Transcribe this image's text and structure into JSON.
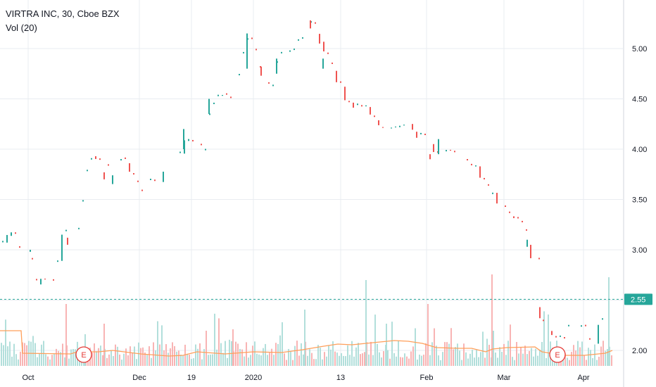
{
  "legend": {
    "title": "VIRTRA INC, 30, Cboe BZX",
    "vol_label": "Vol (20)"
  },
  "price_scale": {
    "last_price": "2.55"
  },
  "earnings_label": "E",
  "colors": {
    "up": "#26a69a",
    "down": "#ef5350",
    "vol_up": "#b2dfdb",
    "vol_down": "#f8b4b4",
    "ma": "#ff9f5a",
    "last": "#26a69a",
    "grid": "#e9ecf1"
  },
  "chart_data": {
    "type": "candlestick",
    "title": "VIRTRA INC, 30, Cboe BZX",
    "yaxis": {
      "ticks": [
        2.0,
        2.5,
        3.0,
        3.5,
        4.0,
        4.5,
        5.0
      ],
      "range": [
        1.9,
        5.45
      ]
    },
    "xaxis": {
      "ticks": [
        "Oct",
        "Dec",
        "19",
        "2020",
        "13",
        "Feb",
        "Mar",
        "Apr"
      ]
    },
    "last_price": 2.55,
    "earnings_markers": 2,
    "volume_indicator": "Vol (20)",
    "price_points": [
      [
        0,
        3.05
      ],
      [
        14,
        3.2
      ],
      [
        28,
        2.95
      ],
      [
        42,
        2.65
      ],
      [
        60,
        2.75
      ],
      [
        75,
        2.7
      ],
      [
        90,
        3.25
      ],
      [
        110,
        3.15
      ],
      [
        125,
        3.9
      ],
      [
        140,
        3.85
      ],
      [
        155,
        3.65
      ],
      [
        170,
        3.9
      ],
      [
        185,
        3.8
      ],
      [
        200,
        3.5
      ],
      [
        215,
        3.7
      ],
      [
        230,
        3.8
      ],
      [
        245,
        3.85
      ],
      [
        260,
        4.1
      ],
      [
        275,
        4.05
      ],
      [
        290,
        4.0
      ],
      [
        300,
        4.5
      ],
      [
        315,
        4.5
      ],
      [
        330,
        4.45
      ],
      [
        350,
        5.1
      ],
      [
        365,
        4.8
      ],
      [
        380,
        4.45
      ],
      [
        395,
        4.9
      ],
      [
        410,
        5.0
      ],
      [
        425,
        5.1
      ],
      [
        440,
        5.25
      ],
      [
        455,
        5.05
      ],
      [
        470,
        4.8
      ],
      [
        485,
        4.55
      ],
      [
        500,
        4.45
      ],
      [
        515,
        4.45
      ],
      [
        530,
        4.3
      ],
      [
        545,
        4.2
      ],
      [
        560,
        4.25
      ],
      [
        575,
        4.3
      ],
      [
        590,
        4.15
      ],
      [
        605,
        4.1
      ],
      [
        618,
        3.95
      ],
      [
        630,
        4.05
      ],
      [
        645,
        3.95
      ],
      [
        660,
        3.9
      ],
      [
        675,
        3.8
      ],
      [
        690,
        3.6
      ],
      [
        705,
        3.5
      ],
      [
        720,
        3.4
      ],
      [
        735,
        3.25
      ],
      [
        748,
        3.05
      ],
      [
        758,
        2.8
      ],
      [
        765,
        2.3
      ],
      [
        778,
        2.2
      ],
      [
        790,
        2.15
      ],
      [
        800,
        2.1
      ],
      [
        812,
        2.3
      ],
      [
        825,
        2.2
      ],
      [
        838,
        2.05
      ],
      [
        850,
        2.25
      ],
      [
        858,
        2.3
      ],
      [
        866,
        2.6
      ]
    ]
  }
}
